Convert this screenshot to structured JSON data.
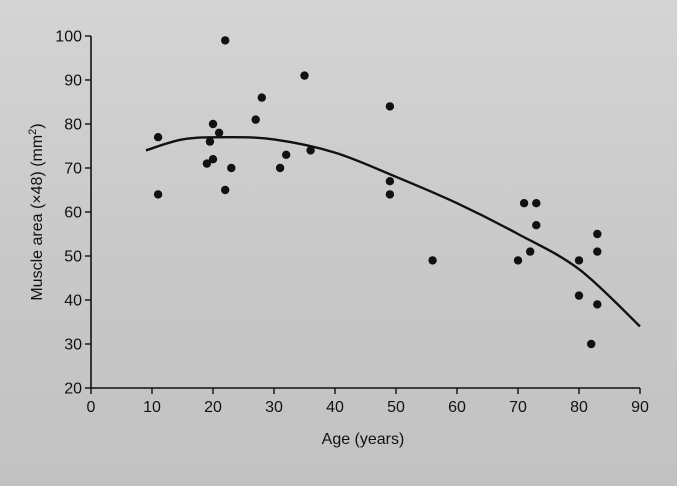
{
  "chart_data": {
    "type": "scatter",
    "xlabel": "Age (years)",
    "ylabel": "Muscle area (×48) (mm²)",
    "ylabel_parts": {
      "main": "Muscle area (×48) (mm",
      "sup": "2",
      "close": ")"
    },
    "xlim": [
      0,
      90
    ],
    "ylim": [
      20,
      100
    ],
    "xticks": [
      0,
      10,
      20,
      30,
      40,
      50,
      60,
      70,
      80,
      90
    ],
    "yticks": [
      20,
      30,
      40,
      50,
      60,
      70,
      80,
      90,
      100
    ],
    "grid": false,
    "series": [
      {
        "values": [
          {
            "x": 11,
            "y": 77
          },
          {
            "x": 11,
            "y": 64
          },
          {
            "x": 19,
            "y": 71
          },
          {
            "x": 19.5,
            "y": 76
          },
          {
            "x": 20,
            "y": 72
          },
          {
            "x": 20,
            "y": 80
          },
          {
            "x": 21,
            "y": 78
          },
          {
            "x": 22,
            "y": 99
          },
          {
            "x": 22,
            "y": 65
          },
          {
            "x": 23,
            "y": 70
          },
          {
            "x": 27,
            "y": 81
          },
          {
            "x": 28,
            "y": 86
          },
          {
            "x": 31,
            "y": 70
          },
          {
            "x": 32,
            "y": 73
          },
          {
            "x": 35,
            "y": 91
          },
          {
            "x": 36,
            "y": 74
          },
          {
            "x": 49,
            "y": 84
          },
          {
            "x": 49,
            "y": 67
          },
          {
            "x": 49,
            "y": 64
          },
          {
            "x": 56,
            "y": 49
          },
          {
            "x": 70,
            "y": 49
          },
          {
            "x": 71,
            "y": 62
          },
          {
            "x": 72,
            "y": 51
          },
          {
            "x": 73,
            "y": 62
          },
          {
            "x": 73,
            "y": 57
          },
          {
            "x": 80,
            "y": 49
          },
          {
            "x": 80,
            "y": 41
          },
          {
            "x": 82,
            "y": 30
          },
          {
            "x": 83,
            "y": 55
          },
          {
            "x": 83,
            "y": 51
          },
          {
            "x": 83,
            "y": 39
          }
        ]
      }
    ],
    "trend_line": {
      "type": "curve",
      "points": [
        {
          "x": 9,
          "y": 74
        },
        {
          "x": 15,
          "y": 76.5
        },
        {
          "x": 22,
          "y": 77
        },
        {
          "x": 30,
          "y": 76.5
        },
        {
          "x": 40,
          "y": 73.5
        },
        {
          "x": 50,
          "y": 68
        },
        {
          "x": 60,
          "y": 62
        },
        {
          "x": 70,
          "y": 55
        },
        {
          "x": 80,
          "y": 47
        },
        {
          "x": 90,
          "y": 34
        }
      ]
    },
    "colors": {
      "points": "#111111",
      "line": "#111111",
      "axes": "#111111"
    }
  }
}
